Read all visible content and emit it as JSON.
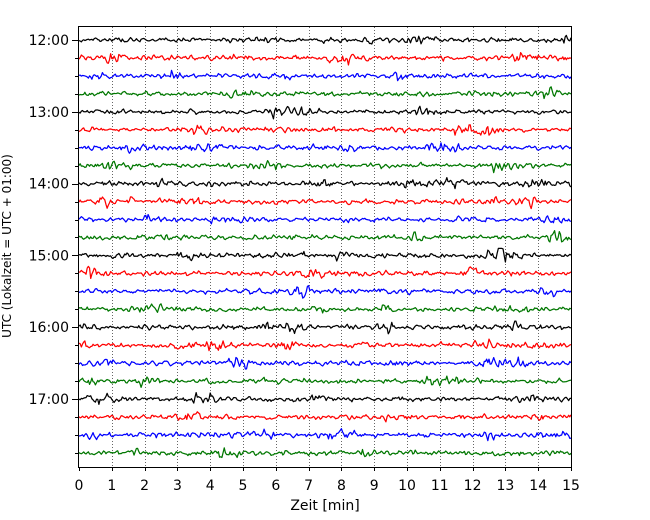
{
  "chart_data": {
    "type": "line",
    "title": "",
    "xlabel": "Zeit  [min]",
    "ylabel": "UTC (Lokalzeit = UTC + 01:00)",
    "xlim": [
      0,
      15
    ],
    "x_ticks": [
      0,
      1,
      2,
      3,
      4,
      5,
      6,
      7,
      8,
      9,
      10,
      11,
      12,
      13,
      14,
      15
    ],
    "x_tick_labels": [
      "0",
      "1",
      "2",
      "3",
      "4",
      "5",
      "6",
      "7",
      "8",
      "9",
      "10",
      "11",
      "12",
      "13",
      "14",
      "15"
    ],
    "y_tick_labels": [
      "12:00",
      "13:00",
      "14:00",
      "15:00",
      "16:00",
      "17:00"
    ],
    "y_tick_rows": [
      0,
      4,
      8,
      12,
      16,
      20
    ],
    "grid": "vertical dotted",
    "trace_row_count": 24,
    "trace_minutes_per_row": 15,
    "colors": [
      "#000000",
      "#ff0000",
      "#0000ff",
      "#007700"
    ],
    "rows": [
      {
        "start": "12:00",
        "color": "#000000"
      },
      {
        "start": "12:15",
        "color": "#ff0000"
      },
      {
        "start": "12:30",
        "color": "#0000ff"
      },
      {
        "start": "12:45",
        "color": "#007700"
      },
      {
        "start": "13:00",
        "color": "#000000"
      },
      {
        "start": "13:15",
        "color": "#ff0000"
      },
      {
        "start": "13:30",
        "color": "#0000ff"
      },
      {
        "start": "13:45",
        "color": "#007700"
      },
      {
        "start": "14:00",
        "color": "#000000"
      },
      {
        "start": "14:15",
        "color": "#ff0000"
      },
      {
        "start": "14:30",
        "color": "#0000ff"
      },
      {
        "start": "14:45",
        "color": "#007700"
      },
      {
        "start": "15:00",
        "color": "#000000"
      },
      {
        "start": "15:15",
        "color": "#ff0000"
      },
      {
        "start": "15:30",
        "color": "#0000ff"
      },
      {
        "start": "15:45",
        "color": "#007700"
      },
      {
        "start": "16:00",
        "color": "#000000"
      },
      {
        "start": "16:15",
        "color": "#ff0000"
      },
      {
        "start": "16:30",
        "color": "#0000ff"
      },
      {
        "start": "16:45",
        "color": "#007700"
      },
      {
        "start": "17:00",
        "color": "#000000"
      },
      {
        "start": "17:15",
        "color": "#ff0000"
      },
      {
        "start": "17:30",
        "color": "#0000ff"
      },
      {
        "start": "17:45",
        "color": "#007700"
      }
    ]
  }
}
